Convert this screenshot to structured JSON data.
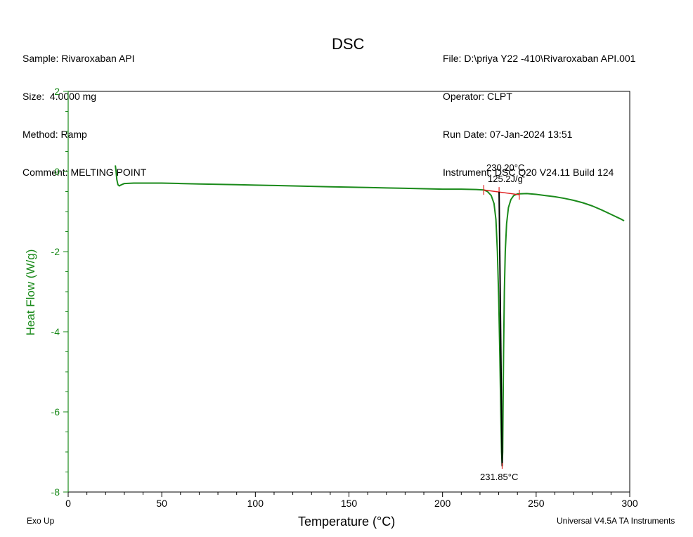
{
  "header": {
    "left": [
      "Sample: Rivaroxaban API",
      "Size:  4.0000 mg",
      "Method: Ramp",
      "Comment: MELTING POINT"
    ],
    "right": [
      "File: D:\\priya Y22 -410\\Rivaroxaban API.001",
      "Operator: CLPT",
      "Run Date: 07-Jan-2024 13:51",
      "Instrument: DSC Q20 V24.11 Build 124"
    ]
  },
  "footer": {
    "left": "Exo Up",
    "right": "Universal V4.5A TA Instruments"
  },
  "colors": {
    "curve": "#1a8a1a",
    "baseline_marker": "#e02020",
    "area_line": "#000000"
  },
  "chart_data": {
    "type": "line",
    "title": "DSC",
    "xlabel": "Temperature (°C)",
    "ylabel": "Heat Flow (W/g)",
    "xlim": [
      0,
      300
    ],
    "ylim": [
      -8,
      2
    ],
    "xticks": [
      "0",
      "50",
      "100",
      "150",
      "200",
      "250",
      "300"
    ],
    "yticks": [
      "2",
      "0",
      "-2",
      "-4",
      "-6",
      "-8"
    ],
    "grid": false,
    "series": [
      {
        "points": [
          [
            25.2,
            0.15
          ],
          [
            25.6,
            0.0
          ],
          [
            26.0,
            -0.2
          ],
          [
            26.6,
            -0.33
          ],
          [
            27.3,
            -0.36
          ],
          [
            28.5,
            -0.33
          ],
          [
            30,
            -0.3
          ],
          [
            35,
            -0.29
          ],
          [
            40,
            -0.29
          ],
          [
            50,
            -0.29
          ],
          [
            60,
            -0.3
          ],
          [
            70,
            -0.31
          ],
          [
            80,
            -0.32
          ],
          [
            90,
            -0.33
          ],
          [
            100,
            -0.34
          ],
          [
            110,
            -0.35
          ],
          [
            120,
            -0.36
          ],
          [
            130,
            -0.37
          ],
          [
            140,
            -0.38
          ],
          [
            150,
            -0.39
          ],
          [
            160,
            -0.4
          ],
          [
            170,
            -0.41
          ],
          [
            180,
            -0.42
          ],
          [
            190,
            -0.43
          ],
          [
            200,
            -0.44
          ],
          [
            210,
            -0.44
          ],
          [
            218,
            -0.45
          ],
          [
            222,
            -0.46
          ],
          [
            224,
            -0.5
          ],
          [
            226,
            -0.6
          ],
          [
            227.5,
            -0.8
          ],
          [
            228.5,
            -1.2
          ],
          [
            229.3,
            -2.0
          ],
          [
            230,
            -3.2
          ],
          [
            230.6,
            -4.6
          ],
          [
            231.1,
            -6.0
          ],
          [
            231.5,
            -7.0
          ],
          [
            231.85,
            -7.35
          ],
          [
            232.1,
            -7.0
          ],
          [
            232.3,
            -6.0
          ],
          [
            232.6,
            -4.5
          ],
          [
            233.0,
            -3.0
          ],
          [
            233.5,
            -2.0
          ],
          [
            234.2,
            -1.3
          ],
          [
            235.2,
            -0.9
          ],
          [
            236.5,
            -0.7
          ],
          [
            238,
            -0.6
          ],
          [
            240,
            -0.56
          ],
          [
            245,
            -0.55
          ],
          [
            250,
            -0.57
          ],
          [
            255,
            -0.6
          ],
          [
            260,
            -0.63
          ],
          [
            265,
            -0.67
          ],
          [
            270,
            -0.72
          ],
          [
            275,
            -0.78
          ],
          [
            280,
            -0.86
          ],
          [
            285,
            -0.96
          ],
          [
            290,
            -1.07
          ],
          [
            295,
            -1.18
          ],
          [
            297,
            -1.23
          ]
        ]
      }
    ],
    "annotations": {
      "onset_label": "230.20°C",
      "enthalpy_label": "125.2J/g",
      "peak_label": "231.85°C",
      "integration_start": [
        222.0,
        -0.46
      ],
      "integration_end": [
        241.0,
        -0.58
      ],
      "peak": [
        231.85,
        -7.35
      ]
    }
  }
}
